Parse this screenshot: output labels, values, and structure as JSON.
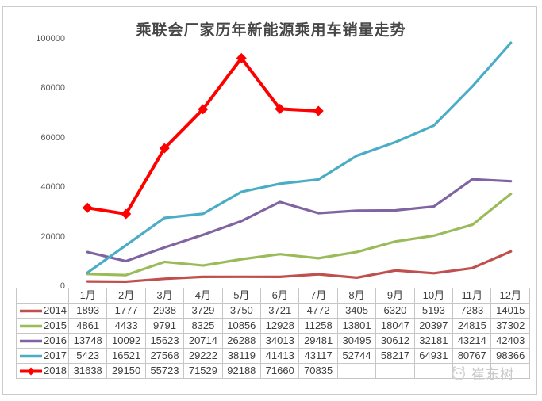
{
  "chart_data": {
    "type": "line",
    "title": "乘联会厂家历年新能源乘用车销量走势",
    "categories": [
      "1月",
      "2月",
      "3月",
      "4月",
      "5月",
      "6月",
      "7月",
      "8月",
      "9月",
      "10月",
      "11月",
      "12月"
    ],
    "series": [
      {
        "name": "2014",
        "color": "#C0504D",
        "marker": "none",
        "values": [
          1893,
          1777,
          2938,
          3729,
          3750,
          3721,
          4772,
          3405,
          6320,
          5193,
          7283,
          14015
        ]
      },
      {
        "name": "2015",
        "color": "#9BBB59",
        "marker": "none",
        "values": [
          4861,
          4433,
          9791,
          8325,
          10856,
          12928,
          11258,
          13801,
          18047,
          20397,
          24815,
          37302
        ]
      },
      {
        "name": "2016",
        "color": "#8064A2",
        "marker": "none",
        "values": [
          13748,
          10092,
          15623,
          20714,
          26288,
          34013,
          29481,
          30495,
          30612,
          32181,
          43214,
          42403
        ]
      },
      {
        "name": "2017",
        "color": "#4BACC6",
        "marker": "none",
        "values": [
          5423,
          16521,
          27568,
          29222,
          38119,
          41413,
          43117,
          52744,
          58217,
          64931,
          80767,
          98366
        ]
      },
      {
        "name": "2018",
        "color": "#FF0000",
        "marker": "diamond",
        "values": [
          31638,
          29150,
          55723,
          71529,
          92188,
          71660,
          70835,
          null,
          null,
          null,
          null,
          null
        ]
      }
    ],
    "ylim": [
      0,
      100000
    ],
    "yticks": [
      0,
      20000,
      40000,
      60000,
      80000,
      100000
    ],
    "grid": false,
    "legend_position": "table-left",
    "data_table_shown": true
  },
  "watermark": {
    "text": "崔东树",
    "icon": "panda-face-logo"
  }
}
